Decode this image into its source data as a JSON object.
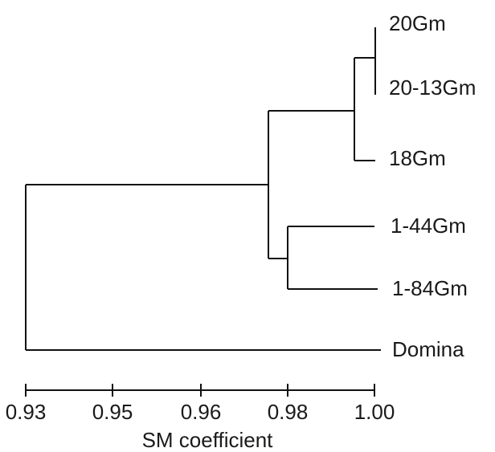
{
  "dendrogram": {
    "axis_title": "SM coefficient",
    "ticks": [
      "0.93",
      "0.95",
      "0.96",
      "0.98",
      "1.00"
    ],
    "leaves": [
      "20Gm",
      "20-13Gm",
      "18Gm",
      "1-44Gm",
      "1-84Gm",
      "Domina"
    ],
    "merges": [
      {
        "members": [
          "20Gm",
          "20-13Gm"
        ],
        "similarity": 1.0
      },
      {
        "members": [
          "20Gm + 20-13Gm",
          "18Gm"
        ],
        "similarity": 0.995
      },
      {
        "members": [
          "1-44Gm",
          "1-84Gm"
        ],
        "similarity": 0.98
      },
      {
        "members": [
          "20Gm + 20-13Gm + 18Gm",
          "1-44Gm + 1-84Gm"
        ],
        "similarity": 0.975
      },
      {
        "members": [
          "all others",
          "Domina"
        ],
        "similarity": 0.93
      }
    ]
  }
}
